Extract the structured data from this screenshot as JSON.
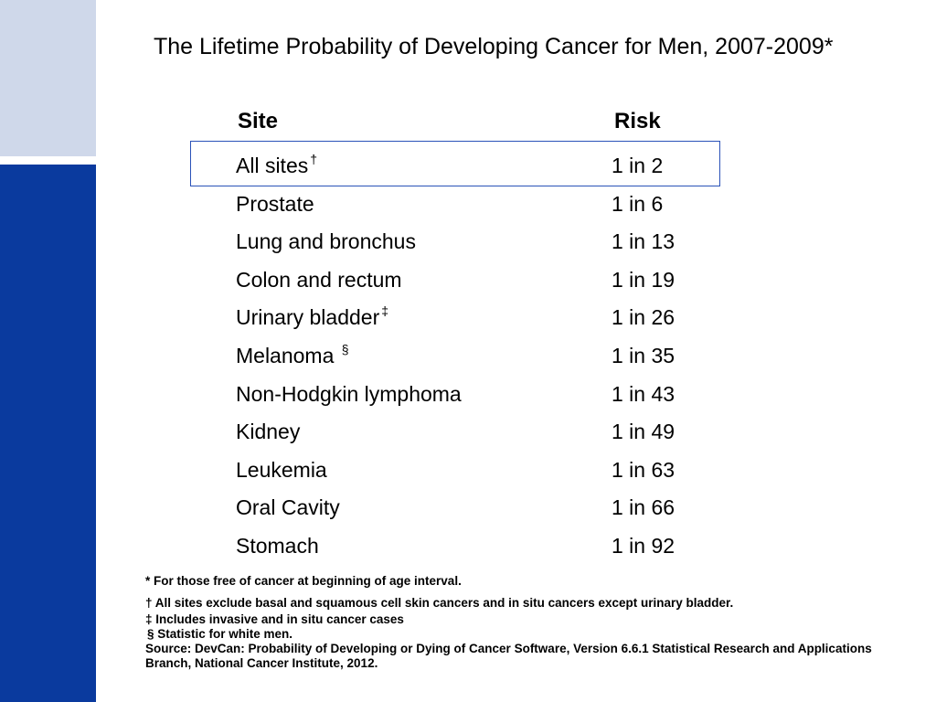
{
  "title": "The Lifetime Probability of Developing Cancer for Men, 2007-2009*",
  "table": {
    "header_site": "Site",
    "header_risk": "Risk",
    "rows": [
      {
        "site": "All sites",
        "mark": "†",
        "risk": "1 in 2"
      },
      {
        "site": "Prostate",
        "mark": "",
        "risk": "1 in 6"
      },
      {
        "site": "Lung and bronchus",
        "mark": "",
        "risk": "1 in 13"
      },
      {
        "site": "Colon and rectum",
        "mark": "",
        "risk": "1 in 19"
      },
      {
        "site": "Urinary bladder",
        "mark": "‡",
        "risk": "1 in 26"
      },
      {
        "site": "Melanoma",
        "mark": "§",
        "risk": "1 in 35"
      },
      {
        "site": "Non-Hodgkin lymphoma",
        "mark": "",
        "risk": "1 in 43"
      },
      {
        "site": "Kidney",
        "mark": "",
        "risk": "1 in 49"
      },
      {
        "site": "Leukemia",
        "mark": "",
        "risk": "1 in 63"
      },
      {
        "site": "Oral Cavity",
        "mark": "",
        "risk": "1 in 66"
      },
      {
        "site": "Stomach",
        "mark": "",
        "risk": "1 in 92"
      }
    ]
  },
  "footnotes": {
    "free_of_cancer": "* For those free of cancer at beginning of age interval.",
    "all_sites": "† All sites exclude basal and squamous cell skin cancers and in situ cancers except urinary bladder.",
    "includes": "‡ Includes invasive and in situ cancer cases",
    "statistic": "§ Statistic for white men.",
    "source": "Source: DevCan: Probability of Developing or Dying of Cancer Software, Version 6.6.1 Statistical Research and Applications Branch, National Cancer Institute, 2012."
  },
  "colors": {
    "band_light": "#cfd8ea",
    "band_dark": "#0a3a9e",
    "highlight_border": "#2a52b8"
  }
}
